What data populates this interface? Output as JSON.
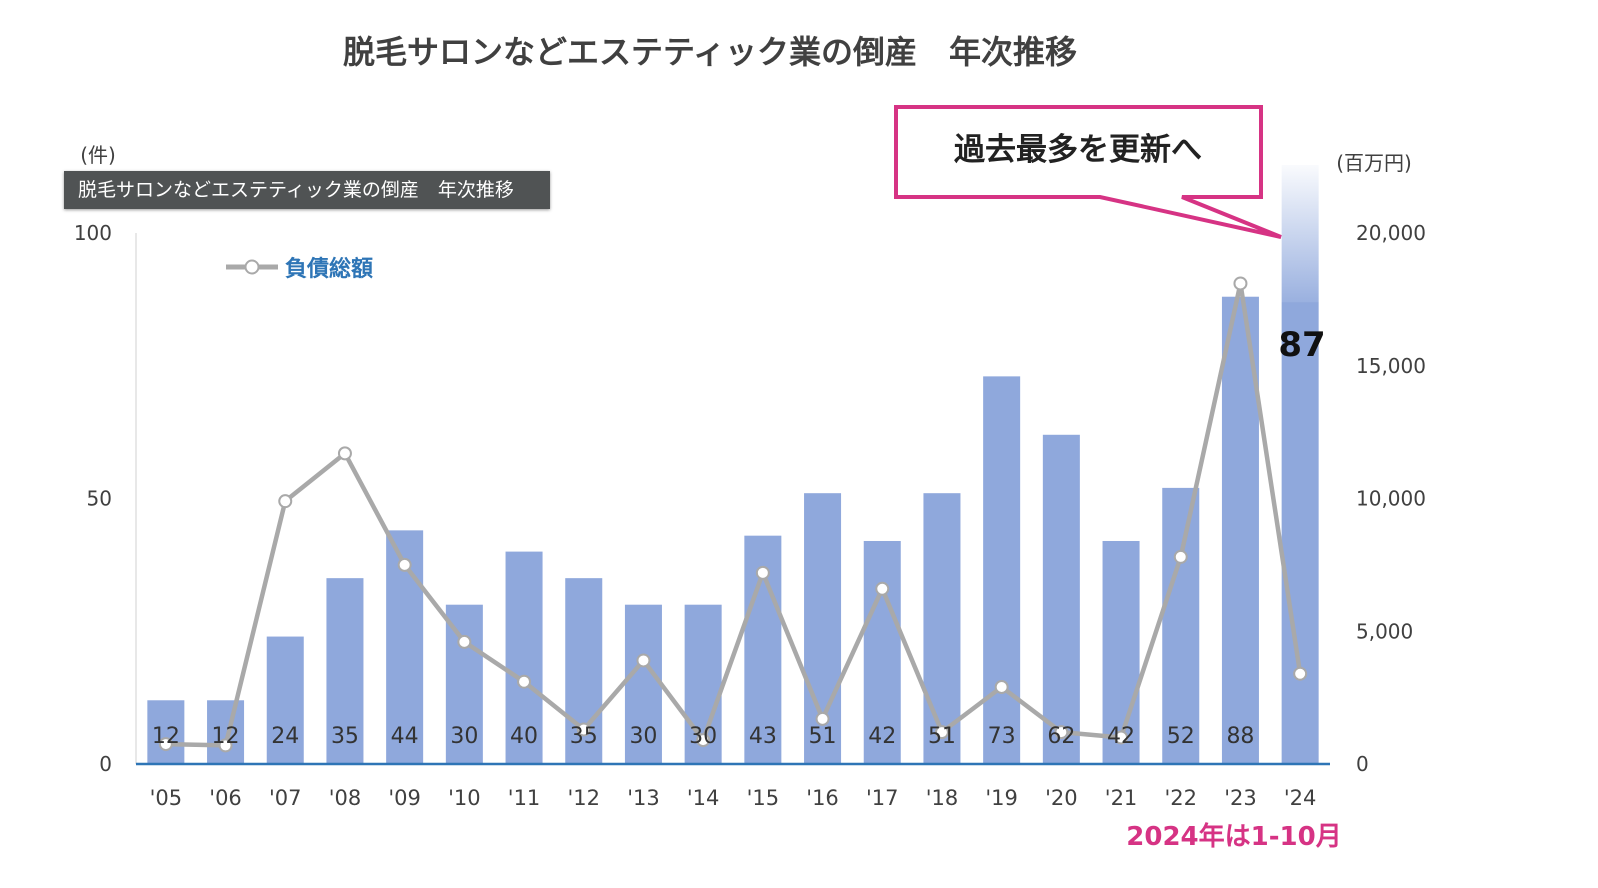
{
  "title": "脱毛サロンなどエステティック業の倒産　年次推移",
  "tooltip": "脱毛サロンなどエステティック業の倒産　年次推移",
  "callout": "過去最多を更新へ",
  "highlight_value": "87",
  "footnote": "2024年は1-10月",
  "colors": {
    "bar": "#8fa8dc",
    "line": "#a9a9a9",
    "axis": "#2e75b6",
    "callout_border": "#d63384",
    "footnote": "#d63384",
    "legend": "#2e75b6"
  },
  "chart_data": {
    "type": "bar",
    "categories": [
      "'05",
      "'06",
      "'07",
      "'08",
      "'09",
      "'10",
      "'11",
      "'12",
      "'13",
      "'14",
      "'15",
      "'16",
      "'17",
      "'18",
      "'19",
      "'20",
      "'21",
      "'22",
      "'23",
      "'24"
    ],
    "y_left": {
      "unit_label": "(件)",
      "ylim": [
        0,
        100
      ],
      "ticks": [
        "0",
        "50",
        "100"
      ]
    },
    "y_right": {
      "unit_label": "(百万円)",
      "ylim": [
        0,
        20000
      ],
      "ticks": [
        "0",
        "5,000",
        "10,000",
        "15,000",
        "20,000"
      ]
    },
    "series": [
      {
        "type": "bar",
        "axis": "left",
        "values": [
          12,
          12,
          24,
          35,
          44,
          30,
          40,
          35,
          30,
          30,
          43,
          51,
          42,
          51,
          73,
          62,
          42,
          52,
          88,
          87
        ],
        "data_labels": [
          "12",
          "12",
          "24",
          "35",
          "44",
          "30",
          "40",
          "35",
          "30",
          "30",
          "43",
          "51",
          "42",
          "51",
          "73",
          "62",
          "42",
          "52",
          "88",
          ""
        ]
      },
      {
        "type": "line",
        "axis": "right",
        "name": "負債総額",
        "values": [
          750,
          700,
          9900,
          11700,
          7500,
          4600,
          3100,
          1300,
          3900,
          900,
          7200,
          1700,
          6600,
          1200,
          2900,
          1200,
          1000,
          7800,
          18100,
          3400
        ]
      }
    ],
    "grid": false,
    "legend": "top-left"
  }
}
